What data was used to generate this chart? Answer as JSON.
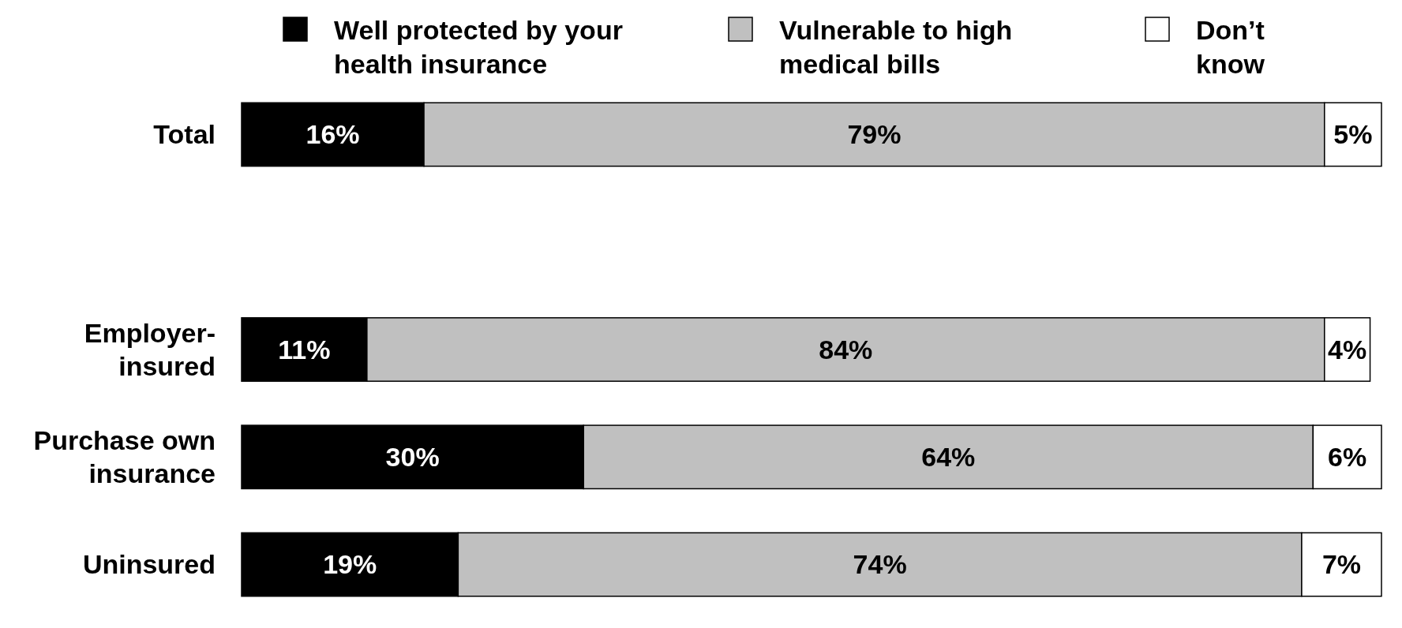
{
  "chart_data": {
    "type": "bar",
    "orientation": "horizontal",
    "stacked": true,
    "legend": "top",
    "xlim": [
      0,
      100
    ],
    "tick_labels": "y",
    "categories": [
      "Total",
      null,
      "Employer-insured",
      "Purchase own insurance",
      "Uninsured"
    ],
    "series": [
      {
        "name": "Well protected by your health insurance",
        "color": "#000000",
        "values": [
          16,
          null,
          11,
          30,
          19
        ],
        "value_labels": [
          "16%",
          null,
          "11%",
          "30%",
          "19%"
        ]
      },
      {
        "name": "Vulnerable to high medical bills",
        "color": "#c0c0c0",
        "values": [
          79,
          null,
          84,
          64,
          74
        ],
        "value_labels": [
          "79%",
          null,
          "84%",
          "64%",
          "74%"
        ]
      },
      {
        "name": "Don’t know",
        "color": "#ffffff",
        "values": [
          5,
          null,
          4,
          6,
          7
        ],
        "value_labels": [
          "5%",
          null,
          "4%",
          "6%",
          "7%"
        ]
      }
    ]
  }
}
